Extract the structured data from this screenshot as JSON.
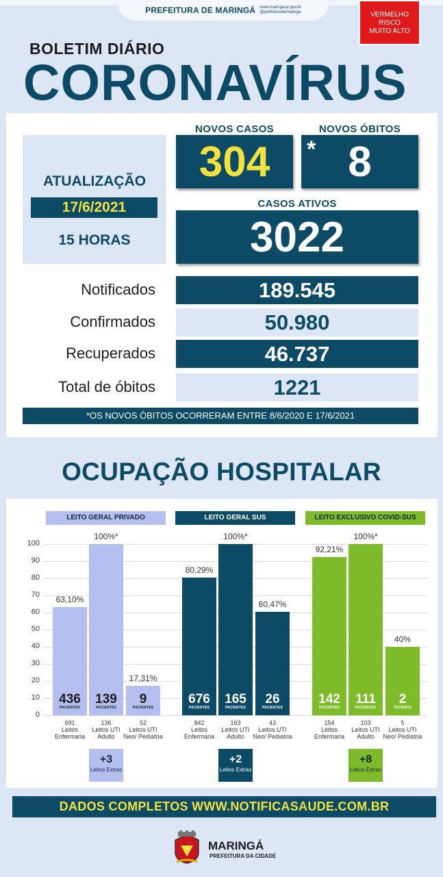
{
  "header": {
    "city_title": "PREFEITURA DE MARINGÁ",
    "site": "www.maringa.pr.gov.br",
    "social": "@prefeiturademaringa",
    "risk_line1": "VERMELHO",
    "risk_line2": "RISCO",
    "risk_line3": "MUITO ALTO"
  },
  "title": {
    "boletim": "BOLETIM DIÁRIO",
    "coronavirus": "CORONAVÍRUS"
  },
  "update": {
    "label": "ATUALIZAÇÃO",
    "date": "17/6/2021",
    "hour": "15 HORAS"
  },
  "new_cases": {
    "label": "NOVOS CASOS",
    "value": "304"
  },
  "new_deaths": {
    "label": "NOVOS ÓBITOS",
    "value": "8",
    "marker": "*"
  },
  "active_cases": {
    "label": "CASOS ATIVOS",
    "value": "3022"
  },
  "stats": [
    {
      "label": "Notificados",
      "value": "189.545"
    },
    {
      "label": "Confirmados",
      "value": "50.980"
    },
    {
      "label": "Recuperados",
      "value": "46.737"
    },
    {
      "label": "Total de óbitos",
      "value": "1221"
    }
  ],
  "note": "*OS NOVOS ÓBITOS OCORRERAM ENTRE 8/6/2020 E 17/6/2021",
  "hospital": {
    "title": "OCUPAÇÃO HOSPITALAR",
    "y_ticks": [
      "100",
      "90",
      "80",
      "70",
      "60",
      "50",
      "40",
      "30",
      "20",
      "10",
      "0"
    ],
    "patients_label": "PACIENTES",
    "patient_label_singular": "PACIENTE",
    "groups": [
      {
        "name": "LEITO GERAL PRIVADO",
        "bar_color": "#b4bff0",
        "header_color": "#b4bff0",
        "bars": [
          {
            "pct": 63.1,
            "pct_label": "63,10%",
            "patients": "436",
            "beds": "691",
            "caption": "Leitos Enfermaria"
          },
          {
            "pct": 100,
            "pct_label": "100%*",
            "patients": "139",
            "beds": "136",
            "caption": "Leitos UTI Adulto"
          },
          {
            "pct": 17.31,
            "pct_label": "17,31%",
            "patients": "9",
            "beds": "52",
            "caption": "Leitos UTI Neo/ Pediatria"
          }
        ],
        "extra_value": "+3",
        "extra_label": "Leitos Extras"
      },
      {
        "name": "LEITO GERAL SUS",
        "bar_color": "#0d4a66",
        "header_color": "#0d4a66",
        "bars": [
          {
            "pct": 80.29,
            "pct_label": "80,29%",
            "patients": "676",
            "beds": "842",
            "caption": "Leitos Enfermaria"
          },
          {
            "pct": 100,
            "pct_label": "100%*",
            "patients": "165",
            "beds": "163",
            "caption": "Leitos UTI Adulto"
          },
          {
            "pct": 60.47,
            "pct_label": "60,47%",
            "patients": "26",
            "beds": "43",
            "caption": "Leitos UTI Neo/ Pediatria"
          }
        ],
        "extra_value": "+2",
        "extra_label": "Leitos Extras"
      },
      {
        "name": "LEITO EXCLUSIVO COVID-SUS",
        "bar_color": "#7dbb2a",
        "header_color": "#7dbb2a",
        "bars": [
          {
            "pct": 92.21,
            "pct_label": "92,21%",
            "patients": "142",
            "beds": "154",
            "caption": "Leitos Enfermaria"
          },
          {
            "pct": 100,
            "pct_label": "100%*",
            "patients": "111",
            "beds": "103",
            "caption": "Leitos UTI Adulto"
          },
          {
            "pct": 40,
            "pct_label": "40%",
            "patients": "2",
            "beds": "5",
            "caption": "Leitos UTI Neo/ Pediatria"
          }
        ],
        "extra_value": "+8",
        "extra_label": "Leitos Extras"
      }
    ]
  },
  "footer": {
    "text": "DADOS COMPLETOS  WWW.NOTIFICASAUDE.COM.BR",
    "brand": "MARINGÁ",
    "brand_sub": "PREFEITURA DA CIDADE"
  },
  "chart_data": {
    "type": "bar",
    "title": "OCUPAÇÃO HOSPITALAR",
    "categories": [
      "Leitos Enfermaria",
      "Leitos UTI Adulto",
      "Leitos UTI Neo/ Pediatria"
    ],
    "ylim": [
      0,
      100
    ],
    "series": [
      {
        "name": "LEITO GERAL PRIVADO",
        "values": [
          63.1,
          100,
          17.31
        ]
      },
      {
        "name": "LEITO GERAL SUS",
        "values": [
          80.29,
          100,
          60.47
        ]
      },
      {
        "name": "LEITO EXCLUSIVO COVID-SUS",
        "values": [
          92.21,
          100,
          40
        ]
      }
    ]
  }
}
